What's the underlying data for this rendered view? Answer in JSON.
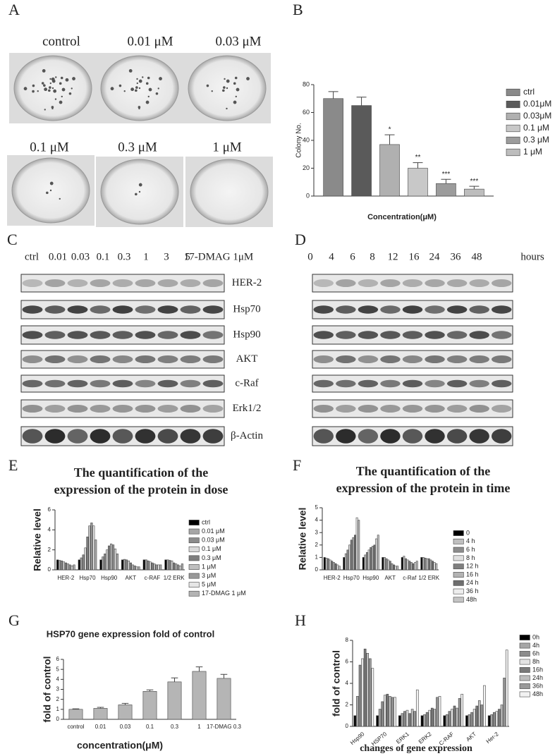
{
  "panels": {
    "A": {
      "label": "A",
      "conditions": [
        "control",
        "0.01 μM",
        "0.03 μM",
        "0.1 μM",
        "0.3 μM",
        "1 μM"
      ]
    },
    "C": {
      "label": "C",
      "lanes": [
        "ctrl",
        "0.01",
        "0.03",
        "0.1",
        "0.3",
        "1",
        "3",
        "5",
        "17-DMAG 1μM"
      ],
      "proteins": [
        "HER-2",
        "Hsp70",
        "Hsp90",
        "AKT",
        "c-Raf",
        "Erk1/2",
        "β-Actin"
      ]
    },
    "D": {
      "label": "D",
      "lanes": [
        "0",
        "4",
        "6",
        "8",
        "12",
        "16",
        "24",
        "36",
        "48"
      ],
      "unit": "hours"
    }
  },
  "chart_data": [
    {
      "type": "bar",
      "panel": "B",
      "ylabel": "Colony No.",
      "xlabel": "Concentration(μM)",
      "categories": [
        null
      ],
      "ylim": [
        0,
        80
      ],
      "yticks": [
        0,
        20,
        40,
        60,
        80
      ],
      "series": [
        {
          "name": "ctrl",
          "color": "#8a8a8a",
          "values": [
            70
          ],
          "errors": [
            5
          ]
        },
        {
          "name": "0.01μM",
          "color": "#5a5a5a",
          "values": [
            65
          ],
          "errors": [
            6
          ]
        },
        {
          "name": "0.03μM",
          "color": "#b0b0b0",
          "values": [
            37
          ],
          "errors": [
            7
          ],
          "annotation": "*"
        },
        {
          "name": "0.1 μM",
          "color": "#c8c8c8",
          "values": [
            20
          ],
          "errors": [
            4
          ],
          "annotation": "**"
        },
        {
          "name": "0.3 μM",
          "color": "#9c9c9c",
          "values": [
            9
          ],
          "errors": [
            3
          ],
          "annotation": "***"
        },
        {
          "name": "1 μM",
          "color": "#bdbdbd",
          "values": [
            5
          ],
          "errors": [
            2
          ],
          "annotation": "***"
        }
      ]
    },
    {
      "type": "bar",
      "panel": "E",
      "title": [
        "The quantification of the",
        "expression of the protein in dose"
      ],
      "ylabel": "Relative level",
      "categories": [
        "HER-2",
        "Hsp70",
        "Hsp90",
        "AKT",
        "c-RAF",
        "1/2 ERK"
      ],
      "ylim": [
        0,
        6
      ],
      "yticks": [
        0,
        2,
        4,
        6
      ],
      "series": [
        {
          "name": "ctrl",
          "color": "#000000",
          "values": [
            1,
            1,
            1,
            1,
            1,
            1
          ]
        },
        {
          "name": "0.01 μM",
          "color": "#a6a6a6",
          "values": [
            0.95,
            1.2,
            1.3,
            1.05,
            1.0,
            1.0
          ]
        },
        {
          "name": "0.03 μM",
          "color": "#8c8c8c",
          "values": [
            0.9,
            1.5,
            1.6,
            1.0,
            0.9,
            0.95
          ]
        },
        {
          "name": "0.1 μM",
          "color": "#d9d9d9",
          "values": [
            0.8,
            2.2,
            2.0,
            0.9,
            0.8,
            0.9
          ]
        },
        {
          "name": "0.3 μM",
          "color": "#7f7f7f",
          "values": [
            0.7,
            3.3,
            2.4,
            0.7,
            0.7,
            0.7
          ]
        },
        {
          "name": "1 μM",
          "color": "#bfbfbf",
          "values": [
            0.6,
            4.4,
            2.6,
            0.5,
            0.6,
            0.6
          ]
        },
        {
          "name": "3 μM",
          "color": "#999999",
          "values": [
            0.5,
            4.7,
            2.5,
            0.4,
            0.5,
            0.5
          ]
        },
        {
          "name": "5 μM",
          "color": "#e6e6e6",
          "values": [
            0.4,
            4.4,
            2.1,
            0.3,
            0.5,
            0.4
          ]
        },
        {
          "name": "17-DMAG 1 μM",
          "color": "#b3b3b3",
          "values": [
            0.5,
            3.0,
            1.6,
            0.3,
            0.5,
            0.6
          ]
        }
      ]
    },
    {
      "type": "bar",
      "panel": "F",
      "title": [
        "The quantification of the",
        "expression of the protein in time"
      ],
      "ylabel": "Relative level",
      "categories": [
        "HER-2",
        "Hsp70",
        "Hsp90",
        "AKT",
        "c-Raf",
        "1/2 ERK"
      ],
      "ylim": [
        0,
        5
      ],
      "yticks": [
        0,
        1,
        2,
        3,
        4,
        5
      ],
      "series": [
        {
          "name": "0",
          "color": "#000000",
          "values": [
            1,
            1,
            1,
            1,
            1,
            1
          ]
        },
        {
          "name": "4 h",
          "color": "#bfbfbf",
          "values": [
            0.95,
            1.3,
            1.2,
            1.0,
            1.1,
            1.0
          ]
        },
        {
          "name": "6 h",
          "color": "#8c8c8c",
          "values": [
            0.9,
            1.6,
            1.4,
            0.9,
            0.9,
            0.95
          ]
        },
        {
          "name": "8 h",
          "color": "#e0e0e0",
          "values": [
            0.8,
            2.0,
            1.6,
            0.8,
            0.8,
            0.9
          ]
        },
        {
          "name": "12 h",
          "color": "#7f7f7f",
          "values": [
            0.7,
            2.4,
            1.8,
            0.7,
            0.7,
            0.9
          ]
        },
        {
          "name": "16 h",
          "color": "#b3b3b3",
          "values": [
            0.6,
            2.6,
            1.9,
            0.5,
            0.6,
            0.8
          ]
        },
        {
          "name": "24 h",
          "color": "#6e6e6e",
          "values": [
            0.5,
            2.8,
            2.0,
            0.4,
            0.5,
            0.7
          ]
        },
        {
          "name": "36 h",
          "color": "#ededed",
          "values": [
            0.4,
            4.2,
            2.5,
            0.3,
            0.6,
            0.6
          ]
        },
        {
          "name": "48h",
          "color": "#c4c4c4",
          "values": [
            0.3,
            4.0,
            2.8,
            0.3,
            0.7,
            0.5
          ]
        }
      ]
    },
    {
      "type": "bar",
      "panel": "G",
      "title": "HSP70 gene expression fold of control",
      "ylabel": "fold of control",
      "xlabel": "concentration(μM)",
      "categories": [
        "control",
        "0.01",
        "0.03",
        "0.1",
        "0.3",
        "1",
        "17-DMAG 0.3"
      ],
      "values": [
        1,
        1.1,
        1.45,
        2.8,
        3.75,
        4.8,
        4.1
      ],
      "errors": [
        0.05,
        0.1,
        0.15,
        0.15,
        0.4,
        0.45,
        0.4
      ],
      "color": "#b5b5b5",
      "ylim": [
        0,
        6
      ],
      "yticks": [
        0,
        1,
        2,
        3,
        4,
        5,
        6
      ]
    },
    {
      "type": "bar",
      "panel": "H",
      "ylabel": "fold of control",
      "xlabel": "changes of gene expression",
      "categories": [
        "Hsp90",
        "HSP70",
        "ERK1",
        "ERK2",
        "C-RAF",
        "AKT",
        "Her-2"
      ],
      "ylim": [
        0,
        8
      ],
      "yticks": [
        0,
        2,
        4,
        6,
        8
      ],
      "series": [
        {
          "name": "0h",
          "color": "#000000",
          "values": [
            1,
            1,
            1,
            1,
            1,
            1,
            1
          ]
        },
        {
          "name": "4h",
          "color": "#a6a6a6",
          "values": [
            2.8,
            1.6,
            1.2,
            1.1,
            1.1,
            1.1,
            1.1
          ]
        },
        {
          "name": "6h",
          "color": "#8c8c8c",
          "values": [
            5.7,
            2.3,
            1.4,
            1.3,
            1.4,
            1.3,
            1.3
          ]
        },
        {
          "name": "8h",
          "color": "#e3e3e3",
          "values": [
            6.3,
            2.9,
            1.5,
            1.5,
            1.6,
            1.6,
            1.4
          ]
        },
        {
          "name": "16h",
          "color": "#7a7a7a",
          "values": [
            7.2,
            3.0,
            1.2,
            1.7,
            1.9,
            1.9,
            1.6
          ]
        },
        {
          "name": "24h",
          "color": "#bdbdbd",
          "values": [
            6.8,
            2.8,
            1.6,
            1.6,
            1.7,
            2.4,
            2.0
          ]
        },
        {
          "name": "36h",
          "color": "#999999",
          "values": [
            6.3,
            2.7,
            1.4,
            2.7,
            2.6,
            2.0,
            4.5
          ]
        },
        {
          "name": "48h",
          "color": "#f2f2f2",
          "values": [
            5.4,
            2.7,
            3.4,
            2.8,
            3.0,
            3.8,
            7.1
          ]
        }
      ]
    }
  ]
}
